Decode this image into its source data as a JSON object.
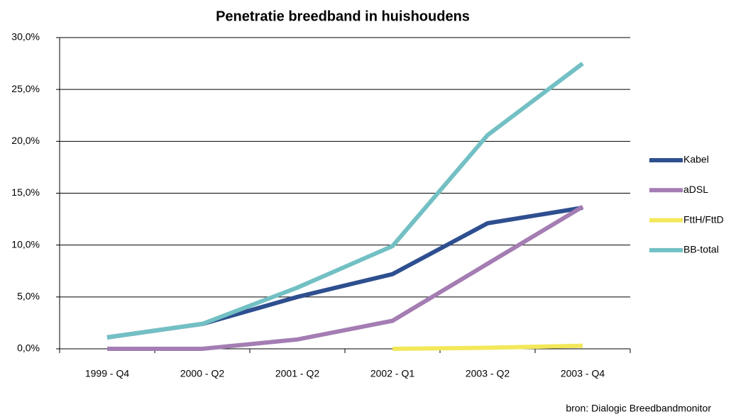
{
  "chart_data": {
    "type": "line",
    "title": "Penetratie breedband in huishoudens",
    "categories": [
      "1999 - Q4",
      "2000 - Q2",
      "2001 - Q2",
      "2002 - Q1",
      "2003 - Q2",
      "2003 - Q4"
    ],
    "series": [
      {
        "name": "Kabel",
        "color": "#2e4f8f",
        "values": [
          1.1,
          2.4,
          5.0,
          7.2,
          12.1,
          13.6
        ]
      },
      {
        "name": "aDSL",
        "color": "#a47db3",
        "values": [
          0,
          0,
          0.9,
          2.7,
          8.2,
          13.7
        ]
      },
      {
        "name": "FttH/FttD",
        "color": "#f2e85a",
        "values": [
          null,
          null,
          null,
          0,
          0.1,
          0.3
        ]
      },
      {
        "name": "BB-total",
        "color": "#72c0c4",
        "values": [
          1.1,
          2.4,
          5.9,
          9.9,
          20.6,
          27.5
        ]
      }
    ],
    "ylim": [
      0,
      30
    ],
    "yticks": [
      {
        "value": 0,
        "label": "0,0%"
      },
      {
        "value": 5,
        "label": "5,0%"
      },
      {
        "value": 10,
        "label": "10,0%"
      },
      {
        "value": 15,
        "label": "15,0%"
      },
      {
        "value": 20,
        "label": "20,0%"
      },
      {
        "value": 25,
        "label": "25,0%"
      },
      {
        "value": 30,
        "label": "30,0%"
      }
    ],
    "grid": true,
    "legend": "right",
    "source": "bron: Dialogic Breedbandmonitor"
  }
}
